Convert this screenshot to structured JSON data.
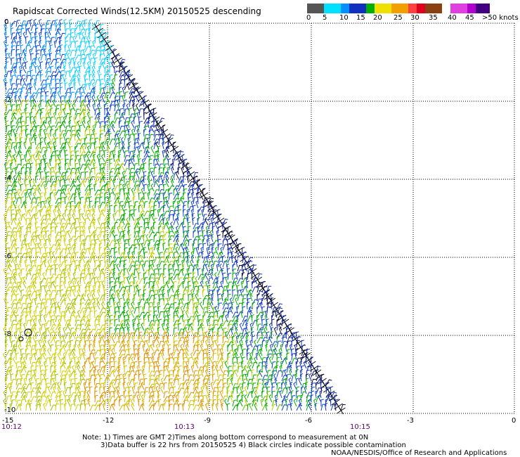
{
  "title": "Rapidscat Corrected Winds(12.5KM) 20150525 descending",
  "colorbar": {
    "colors": [
      "#555555",
      "#00e0ff",
      "#0090ff",
      "#1030c0",
      "#00b000",
      "#f0e000",
      "#f0a000",
      "#ff4040",
      "#e00020",
      "#8a4010",
      "#e040e0",
      "#b000d0",
      "#400080"
    ],
    "labels": [
      "0",
      "5",
      "10",
      "15",
      "20",
      "25",
      "30",
      "35",
      "40",
      "45",
      ">50 knots"
    ]
  },
  "axes": {
    "y_labels": [
      "0",
      "-2",
      "-4",
      "-6",
      "-8",
      "-10"
    ],
    "x_labels": [
      "-15",
      "-12",
      "-9",
      "-6",
      "-3",
      "0"
    ],
    "x_range": [
      -15,
      0
    ],
    "y_range": [
      -10,
      0
    ]
  },
  "time_labels": [
    "10:12",
    "10:13",
    "10:15"
  ],
  "notes": {
    "line1": "Note: 1) Times are GMT 2)Times along bottom correspond to measurement at 0N",
    "line2": "3)Data buffer is 22 hrs from 20150525 4) Black circles indicate possible contamination",
    "line3": "NOAA/NESDIS/Office of Research and Applications"
  }
}
